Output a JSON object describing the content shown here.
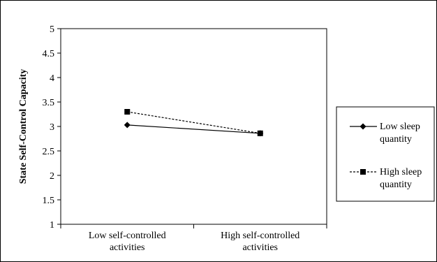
{
  "chart_data": {
    "type": "line",
    "categories": [
      [
        "Low self-controlled",
        "activities"
      ],
      [
        "High self-controlled",
        "activities"
      ]
    ],
    "series": [
      {
        "name": [
          "Low sleep",
          "quantity"
        ],
        "values": [
          3.03,
          2.86
        ],
        "marker": "diamond",
        "line_style": "solid",
        "color": "#000000"
      },
      {
        "name": [
          "High sleep",
          "quantity"
        ],
        "values": [
          3.3,
          2.86
        ],
        "marker": "square",
        "line_style": "dashed",
        "color": "#000000"
      }
    ],
    "ylabel": "State Self-Control Capacity",
    "xlabel": "",
    "ylim": [
      1,
      5
    ],
    "yticks": [
      "1",
      "1.5",
      "2",
      "2.5",
      "3",
      "3.5",
      "4",
      "4.5",
      "5"
    ],
    "grid": false,
    "legend": "right"
  }
}
